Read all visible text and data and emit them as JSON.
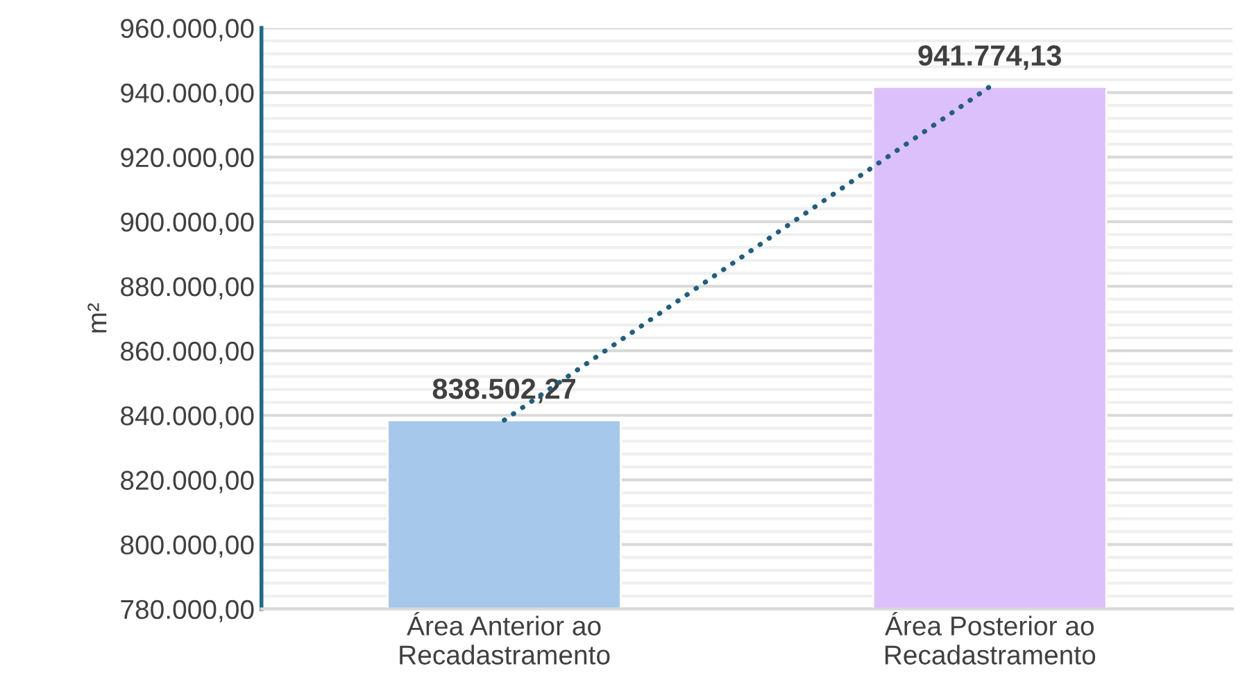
{
  "chart_data": {
    "type": "bar",
    "ylabel": "m²",
    "categories": [
      "Área Anterior ao\nRecadastramento",
      "Área Posterior ao\nRecadastramento"
    ],
    "series": [
      {
        "colors": [
          "#a6c8eb",
          "#dcc0fb"
        ],
        "values": [
          838502.27,
          941774.13
        ],
        "value_labels": [
          "838.502,27",
          "941.774,13"
        ]
      },
      {
        "type": "line",
        "color": "#1f5f7f",
        "line_style": "dotted",
        "x": [
          "Área Anterior ao\nRecadastramento",
          "Área Posterior ao\nRecadastramento"
        ],
        "values": [
          838500,
          941800
        ]
      }
    ],
    "ylim": [
      780000,
      960000
    ],
    "yticks": [
      {
        "value": 780000,
        "label": "780.000,00"
      },
      {
        "value": 800000,
        "label": "800.000,00"
      },
      {
        "value": 820000,
        "label": "820.000,00"
      },
      {
        "value": 840000,
        "label": "840.000,00"
      },
      {
        "value": 860000,
        "label": "860.000,00"
      },
      {
        "value": 880000,
        "label": "880.000,00"
      },
      {
        "value": 900000,
        "label": "900.000,00"
      },
      {
        "value": 920000,
        "label": "920.000,00"
      },
      {
        "value": 940000,
        "label": "940.000,00"
      },
      {
        "value": 960000,
        "label": "960.000,00"
      }
    ],
    "grid": "y"
  }
}
